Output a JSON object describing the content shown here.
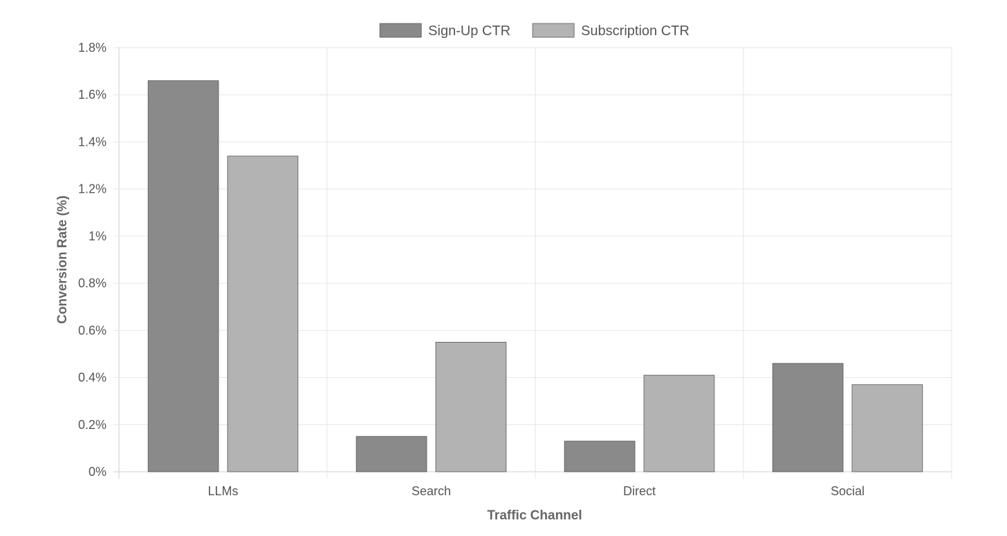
{
  "chart_data": {
    "type": "bar",
    "categories": [
      "LLMs",
      "Search",
      "Direct",
      "Social"
    ],
    "series": [
      {
        "name": "Sign-Up CTR",
        "values": [
          1.66,
          0.15,
          0.13,
          0.46
        ],
        "color": "#8a8a8a"
      },
      {
        "name": "Subscription CTR",
        "values": [
          1.34,
          0.55,
          0.41,
          0.37
        ],
        "color": "#b3b3b3"
      }
    ],
    "xlabel": "Traffic Channel",
    "ylabel": "Conversion Rate (%)",
    "ylim": [
      0,
      1.8
    ],
    "y_ticks": [
      0,
      0.2,
      0.4,
      0.6,
      0.8,
      1,
      1.2,
      1.4,
      1.6,
      1.8
    ],
    "y_tick_labels": [
      "0%",
      "0.2%",
      "0.4%",
      "0.6%",
      "0.8%",
      "1%",
      "1.2%",
      "1.4%",
      "1.6%",
      "1.8%"
    ],
    "grid": true,
    "legend_position": "top-center",
    "colors": {
      "grid": "#e6e6e6",
      "axis": "#cfcfcf",
      "bar_border": "#555555"
    }
  }
}
